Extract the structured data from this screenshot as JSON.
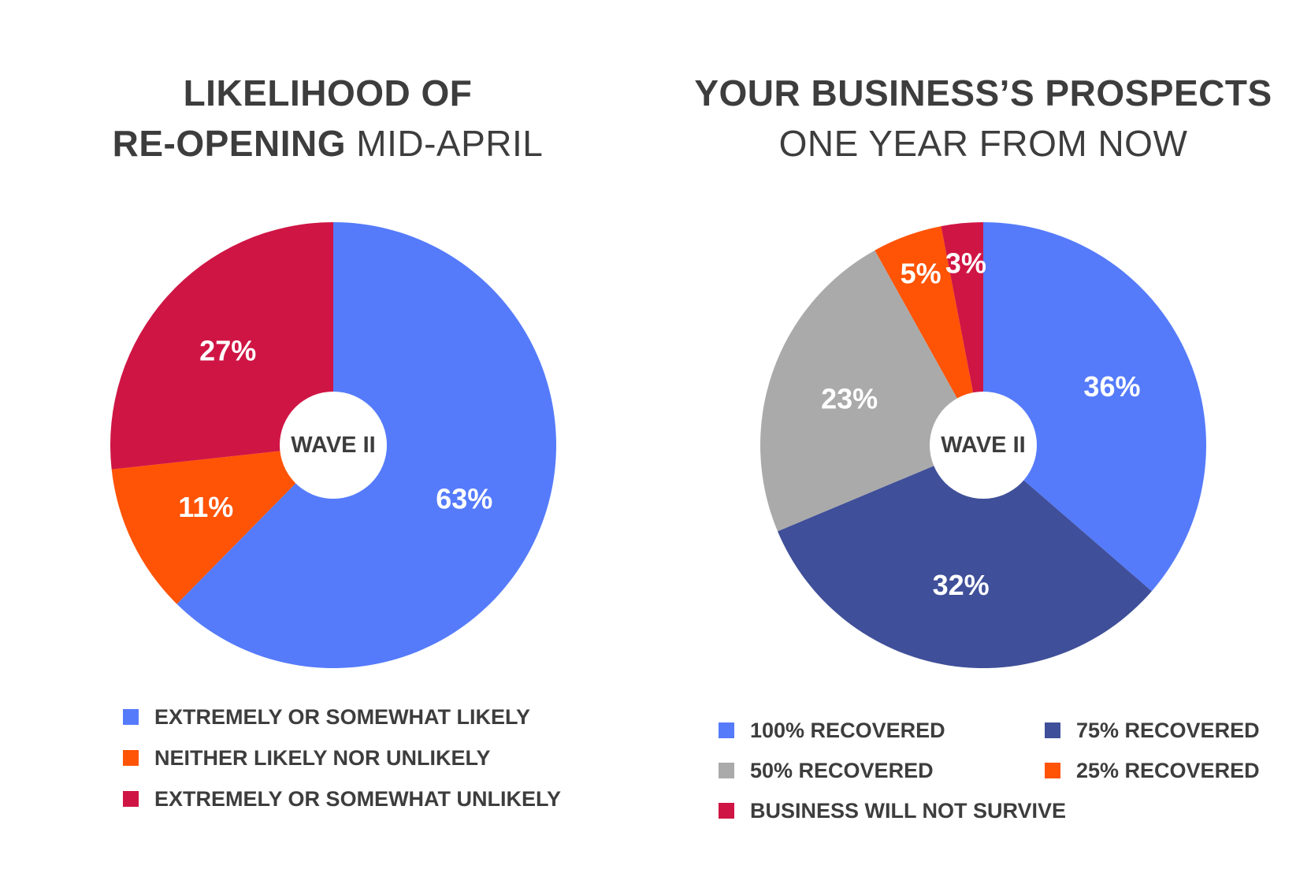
{
  "chart_data": [
    {
      "type": "pie",
      "variant": "donut",
      "title_bold_1": "LIKELIHOOD OF",
      "title_bold_2": "RE-OPENING",
      "title_light_2": "MID-APRIL",
      "center_label": "WAVE II",
      "slices": [
        {
          "label": "EXTREMELY OR SOMEWHAT LIKELY",
          "value": 63,
          "text": "63%",
          "color": "#557bfb"
        },
        {
          "label": "NEITHER LIKELY NOR UNLIKELY",
          "value": 11,
          "text": "11%",
          "color": "#ff5305"
        },
        {
          "label": "EXTREMELY OR SOMEWHAT UNLIKELY",
          "value": 27,
          "text": "27%",
          "color": "#cf1544"
        }
      ],
      "legend_position": "bottom"
    },
    {
      "type": "pie",
      "variant": "donut",
      "title_bold_1": "YOUR BUSINESS’S PROSPECTS",
      "title_light_2": "ONE YEAR FROM NOW",
      "center_label": "WAVE II",
      "slices": [
        {
          "label": "100% RECOVERED",
          "value": 36,
          "text": "36%",
          "color": "#557bfb"
        },
        {
          "label": "75% RECOVERED",
          "value": 32,
          "text": "32%",
          "color": "#3f4f99"
        },
        {
          "label": "50% RECOVERED",
          "value": 23,
          "text": "23%",
          "color": "#aaaaaa"
        },
        {
          "label": "25% RECOVERED",
          "value": 5,
          "text": "5%",
          "color": "#ff5305"
        },
        {
          "label": "BUSINESS WILL NOT SURVIVE",
          "value": 3,
          "text": "3%",
          "color": "#cf1544"
        }
      ],
      "legend_position": "bottom"
    }
  ]
}
